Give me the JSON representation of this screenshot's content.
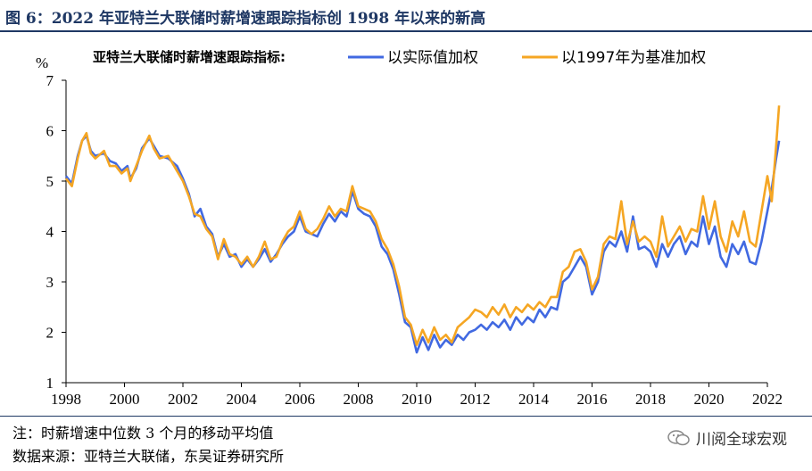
{
  "title": "图 6：2022 年亚特兰大联储时薪增速跟踪指标创 1998 年以来的新高",
  "footer": {
    "note": "注：时薪增速中位数 3 个月的移动平均值",
    "source": "数据来源：亚特兰大联储，东吴证券研究所"
  },
  "watermark": {
    "text": "川阅全球宏观",
    "icon": "wechat-icon"
  },
  "colors": {
    "series_blue": "#4169e1",
    "series_orange": "#f5a623",
    "title": "#1f3864"
  },
  "chart_data": {
    "type": "line",
    "legend_title": "亚特兰大联储时薪增速跟踪指标:",
    "legend_position": "top",
    "ylabel": "%",
    "xlabel": "",
    "ylim": [
      1,
      7
    ],
    "xlim": [
      1998,
      2022
    ],
    "yticks": [
      1,
      2,
      3,
      4,
      5,
      6,
      7
    ],
    "xticks": [
      1998,
      2000,
      2002,
      2004,
      2006,
      2008,
      2010,
      2012,
      2014,
      2016,
      2018,
      2020,
      2022
    ],
    "grid": false,
    "series": [
      {
        "name": "以实际值加权",
        "color": "#4169e1",
        "points": [
          [
            1998.0,
            5.1
          ],
          [
            1998.2,
            4.95
          ],
          [
            1998.4,
            5.5
          ],
          [
            1998.55,
            5.8
          ],
          [
            1998.7,
            5.9
          ],
          [
            1998.85,
            5.6
          ],
          [
            1999.0,
            5.5
          ],
          [
            1999.3,
            5.55
          ],
          [
            1999.5,
            5.4
          ],
          [
            1999.7,
            5.35
          ],
          [
            1999.9,
            5.2
          ],
          [
            2000.1,
            5.3
          ],
          [
            2000.2,
            5.05
          ],
          [
            2000.4,
            5.25
          ],
          [
            2000.6,
            5.65
          ],
          [
            2000.85,
            5.85
          ],
          [
            2001.0,
            5.7
          ],
          [
            2001.2,
            5.5
          ],
          [
            2001.5,
            5.45
          ],
          [
            2001.8,
            5.3
          ],
          [
            2002.0,
            5.05
          ],
          [
            2002.2,
            4.75
          ],
          [
            2002.4,
            4.3
          ],
          [
            2002.6,
            4.45
          ],
          [
            2002.8,
            4.1
          ],
          [
            2003.0,
            3.95
          ],
          [
            2003.2,
            3.5
          ],
          [
            2003.4,
            3.75
          ],
          [
            2003.6,
            3.5
          ],
          [
            2003.8,
            3.55
          ],
          [
            2004.0,
            3.3
          ],
          [
            2004.2,
            3.45
          ],
          [
            2004.4,
            3.3
          ],
          [
            2004.6,
            3.45
          ],
          [
            2004.8,
            3.65
          ],
          [
            2005.0,
            3.4
          ],
          [
            2005.2,
            3.55
          ],
          [
            2005.4,
            3.75
          ],
          [
            2005.6,
            3.9
          ],
          [
            2005.8,
            4.0
          ],
          [
            2006.0,
            4.3
          ],
          [
            2006.2,
            4.0
          ],
          [
            2006.4,
            3.95
          ],
          [
            2006.6,
            3.9
          ],
          [
            2006.8,
            4.15
          ],
          [
            2007.0,
            4.35
          ],
          [
            2007.2,
            4.2
          ],
          [
            2007.4,
            4.4
          ],
          [
            2007.6,
            4.3
          ],
          [
            2007.8,
            4.8
          ],
          [
            2008.0,
            4.45
          ],
          [
            2008.2,
            4.35
          ],
          [
            2008.4,
            4.3
          ],
          [
            2008.6,
            4.1
          ],
          [
            2008.8,
            3.7
          ],
          [
            2009.0,
            3.55
          ],
          [
            2009.2,
            3.25
          ],
          [
            2009.4,
            2.75
          ],
          [
            2009.6,
            2.2
          ],
          [
            2009.8,
            2.1
          ],
          [
            2010.0,
            1.6
          ],
          [
            2010.2,
            1.9
          ],
          [
            2010.4,
            1.65
          ],
          [
            2010.6,
            1.95
          ],
          [
            2010.8,
            1.7
          ],
          [
            2011.0,
            1.85
          ],
          [
            2011.2,
            1.75
          ],
          [
            2011.4,
            1.95
          ],
          [
            2011.6,
            1.85
          ],
          [
            2011.8,
            2.0
          ],
          [
            2012.0,
            2.05
          ],
          [
            2012.2,
            2.15
          ],
          [
            2012.4,
            2.05
          ],
          [
            2012.6,
            2.2
          ],
          [
            2012.8,
            2.1
          ],
          [
            2013.0,
            2.25
          ],
          [
            2013.2,
            2.05
          ],
          [
            2013.4,
            2.3
          ],
          [
            2013.6,
            2.15
          ],
          [
            2013.8,
            2.3
          ],
          [
            2014.0,
            2.2
          ],
          [
            2014.2,
            2.45
          ],
          [
            2014.4,
            2.3
          ],
          [
            2014.6,
            2.5
          ],
          [
            2014.8,
            2.45
          ],
          [
            2015.0,
            3.0
          ],
          [
            2015.2,
            3.1
          ],
          [
            2015.4,
            3.3
          ],
          [
            2015.6,
            3.5
          ],
          [
            2015.8,
            3.3
          ],
          [
            2016.0,
            2.75
          ],
          [
            2016.2,
            3.0
          ],
          [
            2016.4,
            3.6
          ],
          [
            2016.6,
            3.8
          ],
          [
            2016.8,
            3.7
          ],
          [
            2017.0,
            4.0
          ],
          [
            2017.2,
            3.6
          ],
          [
            2017.4,
            4.3
          ],
          [
            2017.6,
            3.65
          ],
          [
            2017.8,
            3.7
          ],
          [
            2018.0,
            3.6
          ],
          [
            2018.2,
            3.3
          ],
          [
            2018.4,
            3.75
          ],
          [
            2018.6,
            3.5
          ],
          [
            2018.8,
            3.75
          ],
          [
            2019.0,
            3.9
          ],
          [
            2019.2,
            3.55
          ],
          [
            2019.4,
            3.8
          ],
          [
            2019.6,
            3.7
          ],
          [
            2019.8,
            4.3
          ],
          [
            2020.0,
            3.75
          ],
          [
            2020.2,
            4.1
          ],
          [
            2020.4,
            3.5
          ],
          [
            2020.6,
            3.3
          ],
          [
            2020.8,
            3.75
          ],
          [
            2021.0,
            3.55
          ],
          [
            2021.2,
            3.8
          ],
          [
            2021.4,
            3.4
          ],
          [
            2021.6,
            3.35
          ],
          [
            2021.8,
            3.8
          ],
          [
            2022.0,
            4.4
          ],
          [
            2022.15,
            4.85
          ],
          [
            2022.3,
            5.45
          ],
          [
            2022.4,
            5.8
          ]
        ]
      },
      {
        "name": "以1997年为基准加权",
        "color": "#f5a623",
        "points": [
          [
            1998.0,
            5.05
          ],
          [
            1998.2,
            4.9
          ],
          [
            1998.4,
            5.45
          ],
          [
            1998.55,
            5.8
          ],
          [
            1998.7,
            5.95
          ],
          [
            1998.85,
            5.55
          ],
          [
            1999.0,
            5.45
          ],
          [
            1999.3,
            5.6
          ],
          [
            1999.5,
            5.3
          ],
          [
            1999.7,
            5.3
          ],
          [
            1999.9,
            5.15
          ],
          [
            2000.1,
            5.25
          ],
          [
            2000.2,
            5.0
          ],
          [
            2000.4,
            5.3
          ],
          [
            2000.6,
            5.6
          ],
          [
            2000.85,
            5.9
          ],
          [
            2001.0,
            5.65
          ],
          [
            2001.2,
            5.45
          ],
          [
            2001.5,
            5.5
          ],
          [
            2001.8,
            5.2
          ],
          [
            2002.0,
            5.0
          ],
          [
            2002.2,
            4.7
          ],
          [
            2002.4,
            4.35
          ],
          [
            2002.6,
            4.3
          ],
          [
            2002.8,
            4.05
          ],
          [
            2003.0,
            3.9
          ],
          [
            2003.2,
            3.45
          ],
          [
            2003.4,
            3.85
          ],
          [
            2003.6,
            3.55
          ],
          [
            2003.8,
            3.5
          ],
          [
            2004.0,
            3.35
          ],
          [
            2004.2,
            3.5
          ],
          [
            2004.4,
            3.3
          ],
          [
            2004.6,
            3.5
          ],
          [
            2004.8,
            3.8
          ],
          [
            2005.0,
            3.45
          ],
          [
            2005.2,
            3.5
          ],
          [
            2005.4,
            3.8
          ],
          [
            2005.6,
            4.0
          ],
          [
            2005.8,
            4.1
          ],
          [
            2006.0,
            4.4
          ],
          [
            2006.2,
            4.05
          ],
          [
            2006.4,
            3.95
          ],
          [
            2006.6,
            4.05
          ],
          [
            2006.8,
            4.25
          ],
          [
            2007.0,
            4.5
          ],
          [
            2007.2,
            4.3
          ],
          [
            2007.4,
            4.45
          ],
          [
            2007.6,
            4.4
          ],
          [
            2007.8,
            4.9
          ],
          [
            2008.0,
            4.5
          ],
          [
            2008.2,
            4.45
          ],
          [
            2008.4,
            4.4
          ],
          [
            2008.6,
            4.2
          ],
          [
            2008.8,
            3.85
          ],
          [
            2009.0,
            3.65
          ],
          [
            2009.2,
            3.35
          ],
          [
            2009.4,
            2.9
          ],
          [
            2009.6,
            2.3
          ],
          [
            2009.8,
            2.15
          ],
          [
            2010.0,
            1.75
          ],
          [
            2010.2,
            2.05
          ],
          [
            2010.4,
            1.8
          ],
          [
            2010.6,
            2.1
          ],
          [
            2010.8,
            1.85
          ],
          [
            2011.0,
            1.95
          ],
          [
            2011.2,
            1.8
          ],
          [
            2011.4,
            2.1
          ],
          [
            2011.6,
            2.2
          ],
          [
            2011.8,
            2.3
          ],
          [
            2012.0,
            2.45
          ],
          [
            2012.2,
            2.4
          ],
          [
            2012.4,
            2.3
          ],
          [
            2012.6,
            2.5
          ],
          [
            2012.8,
            2.35
          ],
          [
            2013.0,
            2.55
          ],
          [
            2013.2,
            2.3
          ],
          [
            2013.4,
            2.5
          ],
          [
            2013.6,
            2.4
          ],
          [
            2013.8,
            2.55
          ],
          [
            2014.0,
            2.45
          ],
          [
            2014.2,
            2.6
          ],
          [
            2014.4,
            2.5
          ],
          [
            2014.6,
            2.7
          ],
          [
            2014.8,
            2.7
          ],
          [
            2015.0,
            3.2
          ],
          [
            2015.2,
            3.3
          ],
          [
            2015.4,
            3.6
          ],
          [
            2015.6,
            3.65
          ],
          [
            2015.8,
            3.4
          ],
          [
            2016.0,
            2.85
          ],
          [
            2016.2,
            3.1
          ],
          [
            2016.4,
            3.75
          ],
          [
            2016.6,
            3.9
          ],
          [
            2016.8,
            3.85
          ],
          [
            2017.0,
            4.6
          ],
          [
            2017.2,
            3.75
          ],
          [
            2017.4,
            4.2
          ],
          [
            2017.6,
            3.8
          ],
          [
            2017.8,
            3.9
          ],
          [
            2018.0,
            3.8
          ],
          [
            2018.2,
            3.5
          ],
          [
            2018.4,
            4.3
          ],
          [
            2018.6,
            3.7
          ],
          [
            2018.8,
            3.9
          ],
          [
            2019.0,
            4.1
          ],
          [
            2019.2,
            3.8
          ],
          [
            2019.4,
            4.05
          ],
          [
            2019.6,
            4.0
          ],
          [
            2019.8,
            4.7
          ],
          [
            2020.0,
            4.05
          ],
          [
            2020.2,
            4.6
          ],
          [
            2020.4,
            3.9
          ],
          [
            2020.6,
            3.6
          ],
          [
            2020.8,
            4.2
          ],
          [
            2021.0,
            3.9
          ],
          [
            2021.2,
            4.4
          ],
          [
            2021.4,
            3.8
          ],
          [
            2021.6,
            3.7
          ],
          [
            2021.8,
            4.4
          ],
          [
            2022.0,
            5.1
          ],
          [
            2022.15,
            4.6
          ],
          [
            2022.3,
            5.7
          ],
          [
            2022.4,
            6.5
          ]
        ]
      }
    ]
  }
}
